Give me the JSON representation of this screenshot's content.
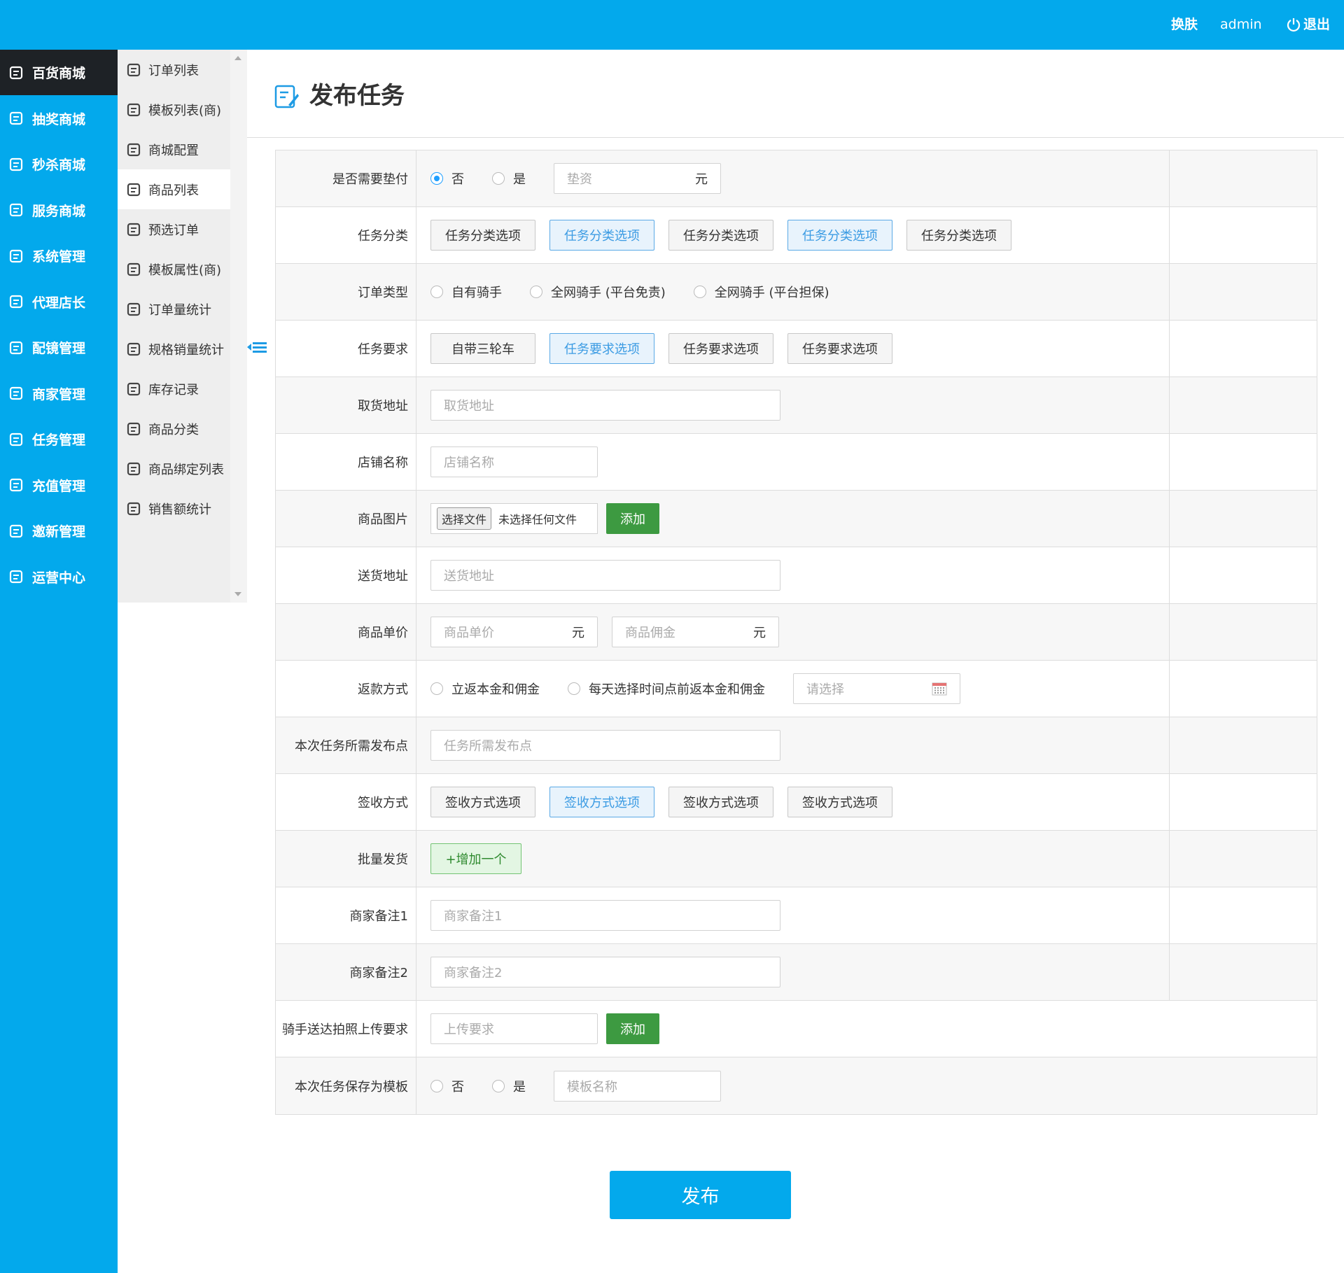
{
  "header": {
    "items": [
      "换肤",
      "admin",
      "退出"
    ]
  },
  "sidebar": {
    "items": [
      "百货商城",
      "抽奖商城",
      "秒杀商城",
      "服务商城",
      "系统管理",
      "代理店长",
      "配镜管理",
      "商家管理",
      "任务管理",
      "充值管理",
      "邀新管理",
      "运营中心"
    ]
  },
  "submenu": {
    "items": [
      "订单列表",
      "模板列表(商)",
      "商城配置",
      "商品列表",
      "预选订单",
      "模板属性(商)",
      "订单量统计",
      "规格销量统计",
      "库存记录",
      "商品分类",
      "商品绑定列表",
      "销售额统计"
    ]
  },
  "page": {
    "title": "发布任务"
  },
  "form": {
    "rows": [
      {
        "label": "是否需要垫付",
        "controls": [
          {
            "type": "radio",
            "text": "否",
            "checked": true
          },
          {
            "type": "radio",
            "text": "是"
          },
          {
            "type": "input",
            "text": "垫资",
            "suffix": "元"
          }
        ]
      },
      {
        "label": "任务分类",
        "controls": [
          {
            "type": "option",
            "text": "任务分类选项"
          },
          {
            "type": "option",
            "text": "任务分类选项",
            "selected": true
          },
          {
            "type": "option",
            "text": "任务分类选项"
          },
          {
            "type": "option",
            "text": "任务分类选项",
            "selected": true
          },
          {
            "type": "option",
            "text": "任务分类选项"
          }
        ]
      },
      {
        "label": "订单类型",
        "controls": [
          {
            "type": "radio",
            "text": "自有骑手"
          },
          {
            "type": "radio",
            "text": "全网骑手 (平台免责)"
          },
          {
            "type": "radio",
            "text": "全网骑手 (平台担保)"
          }
        ]
      },
      {
        "label": "任务要求",
        "controls": [
          {
            "type": "option",
            "text": "自带三轮车"
          },
          {
            "type": "option",
            "text": "任务要求选项",
            "selected": true
          },
          {
            "type": "option",
            "text": "任务要求选项"
          },
          {
            "type": "option",
            "text": "任务要求选项"
          }
        ]
      },
      {
        "label": "取货地址",
        "controls": [
          {
            "type": "wide-input",
            "text": "取货地址"
          }
        ]
      },
      {
        "label": "店铺名称",
        "controls": [
          {
            "type": "input",
            "text": "店铺名称"
          }
        ]
      },
      {
        "label": "商品图片",
        "controls": [
          {
            "type": "file",
            "text": "选择文件",
            "status": "未选择任何文件"
          },
          {
            "type": "add-button",
            "text": "添加"
          }
        ]
      },
      {
        "label": "送货地址",
        "controls": [
          {
            "type": "wide-input",
            "text": "送货地址"
          }
        ]
      },
      {
        "label": "商品单价",
        "controls": [
          {
            "type": "input",
            "text": "商品单价",
            "suffix": "元"
          },
          {
            "type": "input",
            "text": "商品佣金",
            "suffix": "元"
          }
        ]
      },
      {
        "label": "返款方式",
        "controls": [
          {
            "type": "radio",
            "text": "立返本金和佣金"
          },
          {
            "type": "radio",
            "text": "每天选择时间点前返本金和佣金"
          },
          {
            "type": "date-input",
            "text": "请选择"
          }
        ]
      },
      {
        "label": "本次任务所需发布点",
        "controls": [
          {
            "type": "wide-input",
            "text": "任务所需发布点"
          }
        ]
      },
      {
        "label": "签收方式",
        "controls": [
          {
            "type": "option",
            "text": "签收方式选项"
          },
          {
            "type": "option",
            "text": "签收方式选项",
            "selected": true
          },
          {
            "type": "option",
            "text": "签收方式选项"
          },
          {
            "type": "option",
            "text": "签收方式选项"
          }
        ]
      },
      {
        "label": "批量发货",
        "controls": [
          {
            "type": "add-more",
            "text": "+增加一个"
          }
        ]
      },
      {
        "label": "商家备注1",
        "controls": [
          {
            "type": "wide-input",
            "text": "商家备注1"
          }
        ]
      },
      {
        "label": "商家备注2",
        "controls": [
          {
            "type": "wide-input",
            "text": "商家备注2"
          }
        ]
      },
      {
        "label": "骑手送达拍照上传要求",
        "controls": [
          {
            "type": "input",
            "text": "上传要求"
          },
          {
            "type": "add-button",
            "text": "添加"
          }
        ]
      },
      {
        "label": "本次任务保存为模板",
        "controls": [
          {
            "type": "radio",
            "text": "否"
          },
          {
            "type": "radio",
            "text": "是"
          },
          {
            "type": "input",
            "text": "模板名称"
          }
        ]
      }
    ]
  },
  "submit": {
    "text": "发布"
  }
}
